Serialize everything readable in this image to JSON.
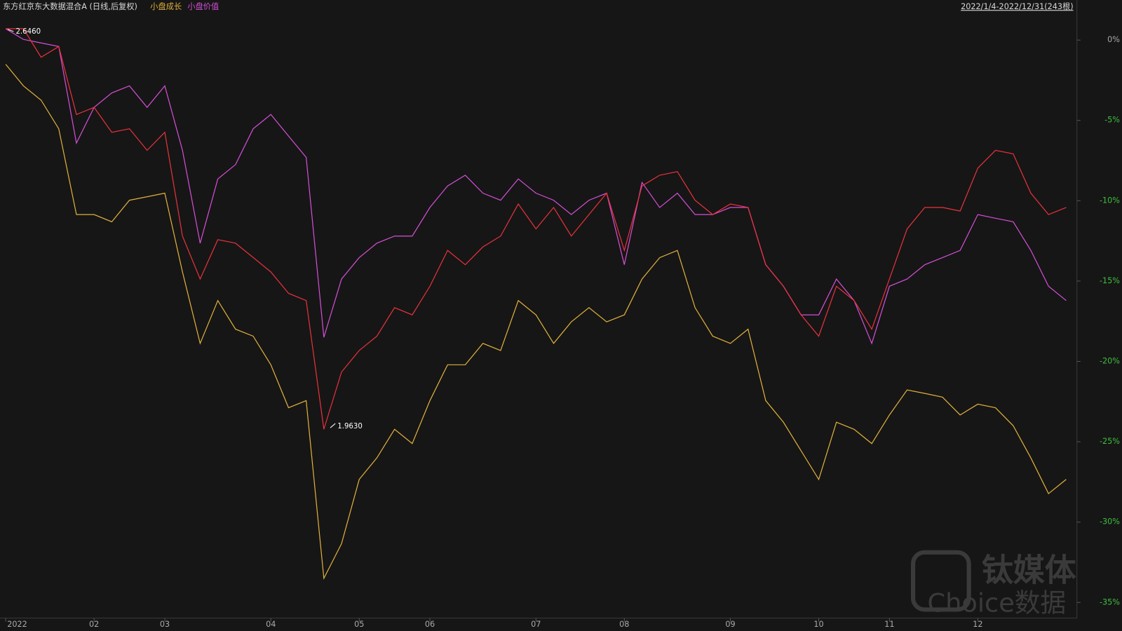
{
  "chart_data": {
    "type": "line",
    "range_label": "2022/1/4-2022/12/31(243根)",
    "categories": [
      "2022",
      null,
      null,
      null,
      null,
      "02",
      null,
      null,
      null,
      "03",
      null,
      null,
      null,
      null,
      null,
      "04",
      null,
      null,
      null,
      null,
      "05",
      null,
      null,
      null,
      "06",
      null,
      null,
      null,
      null,
      null,
      "07",
      null,
      null,
      null,
      null,
      "08",
      null,
      null,
      null,
      null,
      null,
      "09",
      null,
      null,
      null,
      null,
      "10",
      null,
      null,
      null,
      "11",
      null,
      null,
      null,
      null,
      "12",
      null,
      null,
      null,
      null,
      null
    ],
    "series": [
      {
        "name": "东方红京东大数据混合A (日线,后复权)",
        "color": "#e8323c",
        "values": [
          0.71,
          0.71,
          -1.07,
          -0.4,
          -4.63,
          -4.19,
          -5.74,
          -5.52,
          -6.86,
          -5.74,
          -12.2,
          -14.87,
          -12.42,
          -12.64,
          -13.53,
          -14.43,
          -15.76,
          -16.21,
          -24.22,
          -20.66,
          -19.32,
          -18.43,
          -16.65,
          -17.1,
          -15.32,
          -13.09,
          -13.98,
          -12.87,
          -12.2,
          -10.2,
          -11.75,
          -10.42,
          -12.2,
          -10.86,
          -9.53,
          -13.09,
          -9.08,
          -8.41,
          -8.19,
          -9.97,
          -10.86,
          -10.2,
          -10.42,
          -13.98,
          -15.32,
          -17.1,
          -18.43,
          -15.32,
          -16.21,
          -17.99,
          -14.87,
          -11.75,
          -10.42,
          -10.42,
          -10.64,
          -7.97,
          -6.86,
          -7.08,
          -9.53,
          -10.86,
          -10.42
        ]
      },
      {
        "name": "小盘成长",
        "color": "#e0b13c",
        "values": [
          -1.51,
          -2.85,
          -3.74,
          -5.52,
          -10.86,
          -10.86,
          -11.31,
          -9.97,
          -9.75,
          -9.53,
          -14.43,
          -18.88,
          -16.21,
          -17.99,
          -18.43,
          -20.21,
          -22.88,
          -22.44,
          -33.5,
          -31.34,
          -27.34,
          -26.0,
          -24.22,
          -25.11,
          -22.44,
          -20.21,
          -20.21,
          -18.88,
          -19.32,
          -16.21,
          -17.1,
          -18.88,
          -17.54,
          -16.65,
          -17.54,
          -17.1,
          -14.87,
          -13.54,
          -13.09,
          -16.65,
          -18.43,
          -18.88,
          -17.99,
          -22.44,
          -23.78,
          -25.56,
          -27.34,
          -23.78,
          -24.22,
          -25.11,
          -23.33,
          -21.77,
          -21.99,
          -22.22,
          -23.33,
          -22.66,
          -22.88,
          -24.0,
          -26.0,
          -28.23,
          -27.34
        ]
      },
      {
        "name": "小盘价值",
        "color": "#d54fd6",
        "values": [
          0.71,
          0.04,
          -0.18,
          -0.4,
          -6.41,
          -4.19,
          -3.29,
          -2.85,
          -4.19,
          -2.85,
          -6.86,
          -12.64,
          -8.64,
          -7.75,
          -5.52,
          -4.63,
          -5.97,
          -7.3,
          -18.5,
          -14.87,
          -13.54,
          -12.64,
          -12.2,
          -12.2,
          -10.42,
          -9.08,
          -8.41,
          -9.53,
          -9.97,
          -8.64,
          -9.53,
          -9.97,
          -10.86,
          -9.97,
          -9.53,
          -13.98,
          -8.86,
          -10.42,
          -9.53,
          -10.86,
          -10.86,
          -10.42,
          -10.42,
          -13.98,
          -15.32,
          -17.1,
          -17.1,
          -14.87,
          -16.21,
          -18.88,
          -15.32,
          -14.87,
          -13.98,
          -13.54,
          -13.09,
          -10.86,
          -11.09,
          -11.31,
          -13.09,
          -15.32,
          -16.21
        ]
      }
    ],
    "annotations": {
      "max": "2.6460",
      "min": "1.9630"
    },
    "ylim": [
      2.0,
      -35.5
    ],
    "yticks": [
      {
        "value": 0,
        "label": "0%"
      },
      {
        "value": -5,
        "label": "-5%"
      },
      {
        "value": -10,
        "label": "-10%"
      },
      {
        "value": -15,
        "label": "-15%"
      },
      {
        "value": -20,
        "label": "-20%"
      },
      {
        "value": -25,
        "label": "-25%"
      },
      {
        "value": -30,
        "label": "-30%"
      },
      {
        "value": -35,
        "label": "-35%"
      }
    ],
    "grid": false,
    "watermark": [
      "钛媒体",
      "Choice数据"
    ]
  }
}
